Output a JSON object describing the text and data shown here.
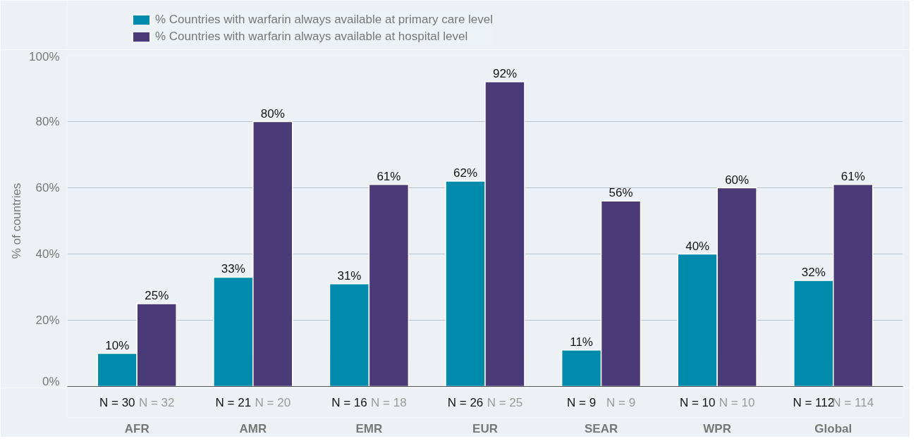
{
  "chart_data": {
    "type": "bar",
    "ylabel": "% of countries",
    "categories": [
      "AFR",
      "AMR",
      "EMR",
      "EUR",
      "SEAR",
      "WPR",
      "Global"
    ],
    "series": [
      {
        "name": "% Countries with warfarin always available at primary care level",
        "color": "#008aab",
        "values": [
          10,
          33,
          31,
          62,
          11,
          40,
          32
        ],
        "value_labels": [
          "10%",
          "33%",
          "31%",
          "62%",
          "11%",
          "40%",
          "32%"
        ]
      },
      {
        "name": "% Countries with warfarin always available at hospital level",
        "color": "#4a3a78",
        "values": [
          25,
          80,
          61,
          92,
          56,
          60,
          61
        ],
        "value_labels": [
          "25%",
          "80%",
          "61%",
          "92%",
          "56%",
          "60%",
          "61%"
        ]
      }
    ],
    "ylim": [
      0,
      100
    ],
    "yticks": [
      {
        "value": 0,
        "label": "0%"
      },
      {
        "value": 20,
        "label": "20%"
      },
      {
        "value": 40,
        "label": "40%"
      },
      {
        "value": 60,
        "label": "60%"
      },
      {
        "value": 80,
        "label": "80%"
      },
      {
        "value": 100,
        "label": "100%"
      }
    ],
    "grid": "y",
    "legend": "top left",
    "annotations": [
      "N = 30",
      "N = 32",
      "N = 21",
      "N = 20",
      "N = 16",
      "N = 18",
      "N = 26",
      "N = 25",
      "N = 9",
      "N = 9",
      "N = 10",
      "N = 10",
      "N = 112",
      "N = 114"
    ]
  }
}
